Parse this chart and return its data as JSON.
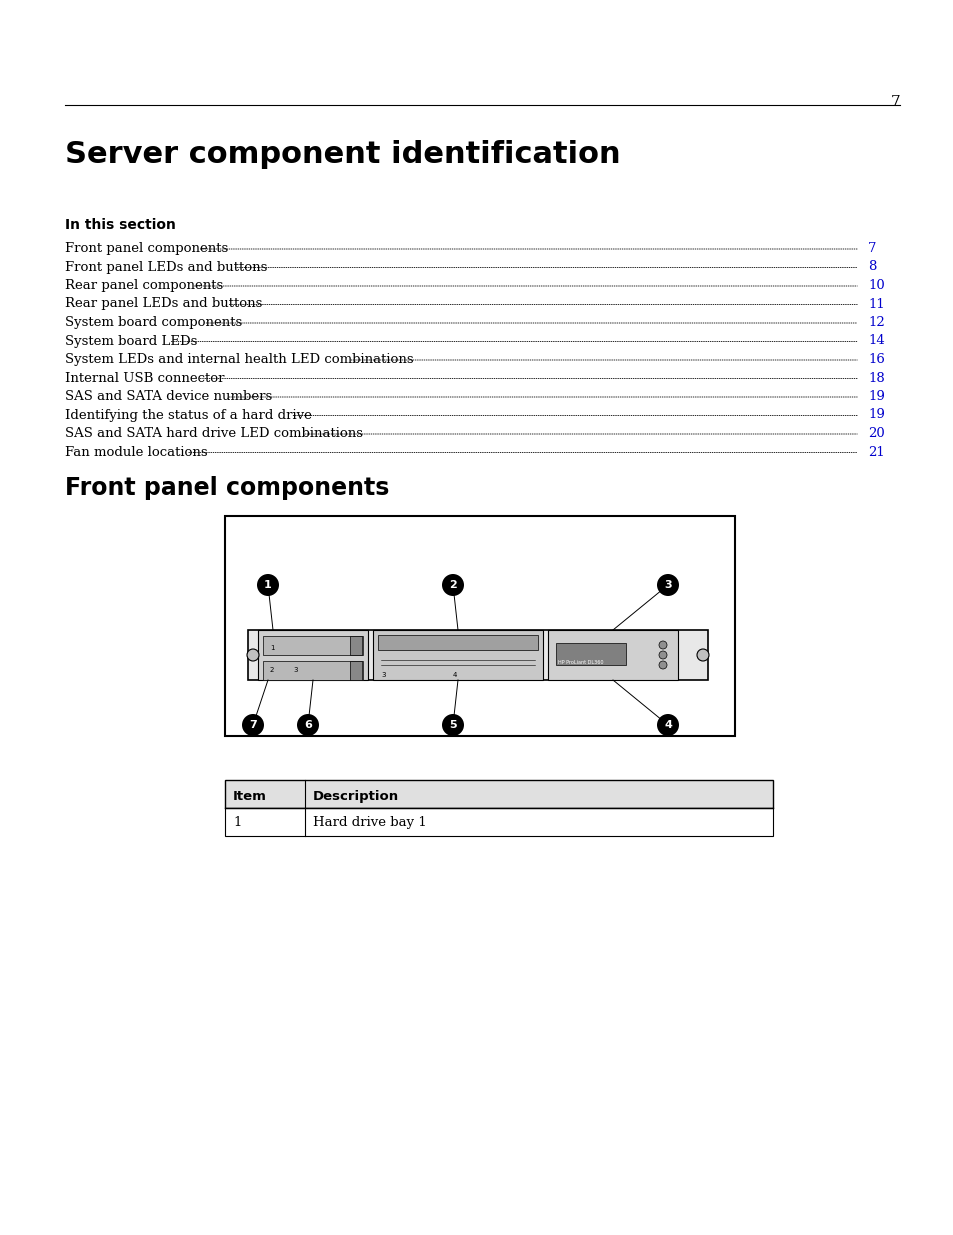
{
  "page_number": "7",
  "main_title": "Server component identification",
  "section_label": "In this section",
  "toc_items": [
    [
      "Front panel components",
      "7"
    ],
    [
      "Front panel LEDs and buttons",
      "8"
    ],
    [
      "Rear panel components",
      "10"
    ],
    [
      "Rear panel LEDs and buttons",
      "11"
    ],
    [
      "System board components",
      "12"
    ],
    [
      "System board LEDs",
      "14"
    ],
    [
      "System LEDs and internal health LED combinations",
      "16"
    ],
    [
      "Internal USB connector",
      "18"
    ],
    [
      "SAS and SATA device numbers",
      "19"
    ],
    [
      "Identifying the status of a hard drive",
      "19"
    ],
    [
      "SAS and SATA hard drive LED combinations",
      "20"
    ],
    [
      "Fan module locations",
      "21"
    ]
  ],
  "section2_title": "Front panel components",
  "table_headers": [
    "Item",
    "Description"
  ],
  "table_rows": [
    [
      "1",
      "Hard drive bay 1"
    ]
  ],
  "bg_color": "#ffffff",
  "text_color": "#000000",
  "link_color": "#0000cc",
  "line_color": "#000000"
}
